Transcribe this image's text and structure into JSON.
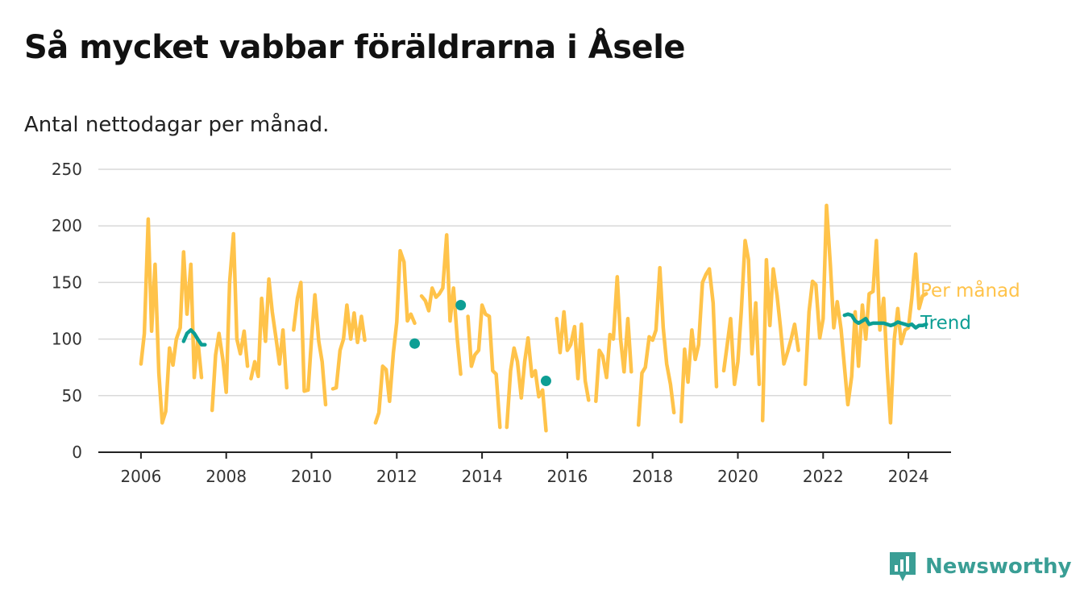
{
  "title": "Så mycket vabbar föräldrarna i Åsele",
  "subtitle": "Antal nettodagar per månad.",
  "brand": {
    "name": "Newsworthy",
    "icon": "chart-logo-icon",
    "color": "#3a9e95"
  },
  "chart_data": {
    "type": "line",
    "title": "Så mycket vabbar föräldrarna i Åsele",
    "subtitle": "Antal nettodagar per månad.",
    "xlabel": "",
    "ylabel": "",
    "ylim": [
      0,
      250
    ],
    "xlim": [
      2005.0,
      2025.0
    ],
    "yticks": [
      "0",
      "50",
      "100",
      "150",
      "200",
      "250"
    ],
    "xticks": [
      "2006",
      "2008",
      "2010",
      "2012",
      "2014",
      "2016",
      "2018",
      "2020",
      "2022",
      "2024"
    ],
    "grid": "horizontal",
    "legend": "right, inline at line ends",
    "series": [
      {
        "name": "Per månad",
        "color": "#ffc34a",
        "segments": [
          [
            [
              2006.0,
              78
            ],
            [
              2006.08,
              105
            ],
            [
              2006.17,
              206
            ],
            [
              2006.25,
              107
            ],
            [
              2006.33,
              166
            ],
            [
              2006.42,
              70
            ],
            [
              2006.5,
              26
            ],
            [
              2006.58,
              36
            ],
            [
              2006.67,
              92
            ],
            [
              2006.75,
              77
            ],
            [
              2006.83,
              100
            ],
            [
              2006.92,
              110
            ],
            [
              2007.0,
              177
            ],
            [
              2007.08,
              122
            ],
            [
              2007.17,
              166
            ],
            [
              2007.25,
              66
            ],
            [
              2007.33,
              100
            ],
            [
              2007.42,
              66
            ]
          ],
          [
            [
              2007.67,
              37
            ],
            [
              2007.75,
              86
            ],
            [
              2007.83,
              105
            ],
            [
              2007.92,
              82
            ],
            [
              2008.0,
              53
            ],
            [
              2008.08,
              150
            ],
            [
              2008.17,
              193
            ],
            [
              2008.25,
              100
            ],
            [
              2008.33,
              87
            ],
            [
              2008.42,
              107
            ],
            [
              2008.5,
              76
            ]
          ],
          [
            [
              2008.58,
              65
            ],
            [
              2008.67,
              80
            ],
            [
              2008.75,
              67
            ],
            [
              2008.83,
              136
            ],
            [
              2008.92,
              98
            ],
            [
              2009.0,
              153
            ],
            [
              2009.08,
              124
            ],
            [
              2009.17,
              100
            ],
            [
              2009.25,
              78
            ],
            [
              2009.33,
              108
            ],
            [
              2009.42,
              57
            ]
          ],
          [
            [
              2009.58,
              108
            ],
            [
              2009.67,
              136
            ],
            [
              2009.75,
              150
            ],
            [
              2009.83,
              54
            ],
            [
              2009.92,
              55
            ],
            [
              2010.0,
              100
            ],
            [
              2010.08,
              139
            ],
            [
              2010.17,
              98
            ],
            [
              2010.25,
              80
            ],
            [
              2010.33,
              42
            ]
          ],
          [
            [
              2010.5,
              56
            ],
            [
              2010.58,
              57
            ],
            [
              2010.67,
              90
            ],
            [
              2010.75,
              100
            ],
            [
              2010.83,
              130
            ],
            [
              2010.92,
              100
            ],
            [
              2011.0,
              123
            ],
            [
              2011.08,
              97
            ],
            [
              2011.17,
              120
            ],
            [
              2011.25,
              99
            ]
          ],
          [
            [
              2011.5,
              26
            ],
            [
              2011.58,
              35
            ],
            [
              2011.67,
              76
            ],
            [
              2011.75,
              73
            ],
            [
              2011.83,
              45
            ],
            [
              2011.92,
              88
            ],
            [
              2012.0,
              115
            ],
            [
              2012.08,
              178
            ],
            [
              2012.17,
              168
            ],
            [
              2012.25,
              116
            ],
            [
              2012.33,
              122
            ],
            [
              2012.42,
              114
            ]
          ],
          [
            [
              2012.58,
              138
            ],
            [
              2012.67,
              134
            ],
            [
              2012.75,
              125
            ],
            [
              2012.83,
              145
            ],
            [
              2012.92,
              137
            ],
            [
              2013.0,
              140
            ],
            [
              2013.08,
              145
            ],
            [
              2013.17,
              192
            ],
            [
              2013.25,
              116
            ],
            [
              2013.33,
              145
            ],
            [
              2013.42,
              100
            ],
            [
              2013.5,
              69
            ]
          ],
          [
            [
              2013.67,
              120
            ],
            [
              2013.75,
              76
            ],
            [
              2013.83,
              86
            ],
            [
              2013.92,
              90
            ],
            [
              2014.0,
              130
            ],
            [
              2014.08,
              122
            ],
            [
              2014.17,
              120
            ],
            [
              2014.25,
              72
            ],
            [
              2014.33,
              69
            ],
            [
              2014.42,
              22
            ]
          ],
          [
            [
              2014.58,
              22
            ],
            [
              2014.67,
              72
            ],
            [
              2014.75,
              92
            ],
            [
              2014.83,
              80
            ],
            [
              2014.92,
              48
            ],
            [
              2015.0,
              80
            ],
            [
              2015.08,
              101
            ],
            [
              2015.17,
              67
            ],
            [
              2015.25,
              72
            ],
            [
              2015.33,
              49
            ],
            [
              2015.42,
              55
            ],
            [
              2015.5,
              19
            ]
          ],
          [
            [
              2015.75,
              118
            ],
            [
              2015.83,
              88
            ],
            [
              2015.92,
              124
            ],
            [
              2016.0,
              90
            ],
            [
              2016.08,
              95
            ],
            [
              2016.17,
              111
            ],
            [
              2016.25,
              65
            ],
            [
              2016.33,
              113
            ],
            [
              2016.42,
              63
            ],
            [
              2016.5,
              46
            ]
          ],
          [
            [
              2016.67,
              45
            ],
            [
              2016.75,
              90
            ],
            [
              2016.83,
              85
            ],
            [
              2016.92,
              66
            ],
            [
              2017.0,
              104
            ],
            [
              2017.08,
              100
            ],
            [
              2017.17,
              155
            ],
            [
              2017.25,
              100
            ],
            [
              2017.33,
              71
            ],
            [
              2017.42,
              118
            ],
            [
              2017.5,
              71
            ]
          ],
          [
            [
              2017.67,
              24
            ],
            [
              2017.75,
              70
            ],
            [
              2017.83,
              75
            ],
            [
              2017.92,
              102
            ],
            [
              2018.0,
              99
            ],
            [
              2018.08,
              108
            ],
            [
              2018.17,
              163
            ],
            [
              2018.25,
              110
            ],
            [
              2018.33,
              78
            ],
            [
              2018.42,
              60
            ],
            [
              2018.5,
              35
            ]
          ],
          [
            [
              2018.67,
              27
            ],
            [
              2018.75,
              91
            ],
            [
              2018.83,
              62
            ],
            [
              2018.92,
              108
            ],
            [
              2019.0,
              82
            ],
            [
              2019.08,
              95
            ],
            [
              2019.17,
              150
            ],
            [
              2019.25,
              157
            ],
            [
              2019.33,
              162
            ],
            [
              2019.42,
              132
            ],
            [
              2019.5,
              58
            ]
          ],
          [
            [
              2019.67,
              72
            ],
            [
              2019.75,
              95
            ],
            [
              2019.83,
              118
            ],
            [
              2019.92,
              60
            ],
            [
              2020.0,
              80
            ],
            [
              2020.08,
              124
            ],
            [
              2020.17,
              187
            ],
            [
              2020.25,
              170
            ],
            [
              2020.33,
              87
            ],
            [
              2020.42,
              132
            ],
            [
              2020.5,
              60
            ]
          ],
          [
            [
              2020.58,
              28
            ],
            [
              2020.67,
              170
            ],
            [
              2020.75,
              112
            ],
            [
              2020.83,
              162
            ],
            [
              2020.92,
              138
            ],
            [
              2021.0,
              110
            ],
            [
              2021.08,
              78
            ],
            [
              2021.17,
              89
            ],
            [
              2021.25,
              100
            ],
            [
              2021.33,
              113
            ],
            [
              2021.42,
              90
            ]
          ],
          [
            [
              2021.58,
              60
            ],
            [
              2021.67,
              124
            ],
            [
              2021.75,
              151
            ],
            [
              2021.83,
              148
            ],
            [
              2021.92,
              101
            ],
            [
              2022.0,
              118
            ],
            [
              2022.08,
              218
            ],
            [
              2022.17,
              165
            ],
            [
              2022.25,
              110
            ],
            [
              2022.33,
              133
            ],
            [
              2022.42,
              109
            ],
            [
              2022.5,
              75
            ],
            [
              2022.58,
              42
            ],
            [
              2022.67,
              67
            ],
            [
              2022.75,
              124
            ],
            [
              2022.83,
              76
            ],
            [
              2022.92,
              130
            ],
            [
              2023.0,
              100
            ],
            [
              2023.08,
              140
            ],
            [
              2023.17,
              142
            ],
            [
              2023.25,
              187
            ],
            [
              2023.33,
              108
            ],
            [
              2023.42,
              136
            ],
            [
              2023.5,
              74
            ],
            [
              2023.58,
              26
            ],
            [
              2023.67,
              100
            ],
            [
              2023.75,
              127
            ],
            [
              2023.83,
              96
            ],
            [
              2023.92,
              108
            ],
            [
              2024.0,
              110
            ],
            [
              2024.08,
              136
            ],
            [
              2024.17,
              175
            ],
            [
              2024.25,
              127
            ],
            [
              2024.33,
              138
            ],
            [
              2024.42,
              140
            ]
          ]
        ]
      },
      {
        "name": "Trend",
        "color": "#0d9e94",
        "segments": [
          [
            [
              2007.0,
              98
            ],
            [
              2007.08,
              105
            ],
            [
              2007.17,
              108
            ],
            [
              2007.25,
              105
            ],
            [
              2007.33,
              100
            ],
            [
              2007.42,
              95
            ],
            [
              2007.5,
              95
            ]
          ],
          [
            [
              2012.42,
              96
            ]
          ],
          [
            [
              2013.5,
              130
            ]
          ],
          [
            [
              2015.5,
              63
            ]
          ],
          [
            [
              2022.5,
              121
            ],
            [
              2022.58,
              122
            ],
            [
              2022.67,
              121
            ],
            [
              2022.75,
              116
            ],
            [
              2022.83,
              114
            ],
            [
              2022.92,
              116
            ],
            [
              2023.0,
              118
            ],
            [
              2023.08,
              113
            ],
            [
              2023.17,
              114
            ],
            [
              2023.25,
              114
            ],
            [
              2023.33,
              114
            ],
            [
              2023.42,
              114
            ],
            [
              2023.5,
              113
            ],
            [
              2023.58,
              112
            ],
            [
              2023.67,
              113
            ],
            [
              2023.75,
              115
            ],
            [
              2023.83,
              114
            ],
            [
              2023.92,
              113
            ],
            [
              2024.0,
              112
            ],
            [
              2024.08,
              113
            ],
            [
              2024.17,
              110
            ],
            [
              2024.25,
              112
            ],
            [
              2024.33,
              112
            ],
            [
              2024.42,
              113
            ]
          ]
        ]
      }
    ]
  }
}
